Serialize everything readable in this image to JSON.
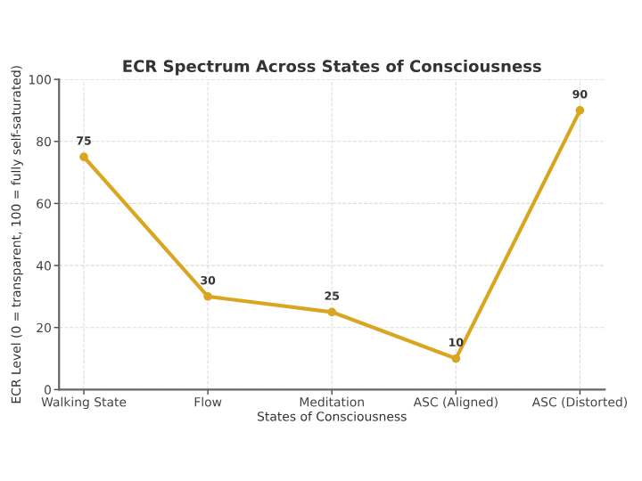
{
  "chart_data": {
    "type": "line",
    "title": "ECR Spectrum Across States of Consciousness",
    "xlabel": "States of Consciousness",
    "ylabel": "ECR Level (0 = transparent, 100 = fully self-saturated)",
    "categories": [
      "Walking State",
      "Flow",
      "Meditation",
      "ASC (Aligned)",
      "ASC (Distorted)"
    ],
    "series": [
      {
        "color": "#daa520",
        "values": [
          75,
          30,
          25,
          10,
          90
        ]
      }
    ],
    "ylim": [
      0,
      100
    ],
    "yticks": [
      0,
      20,
      40,
      60,
      80,
      100
    ],
    "grid": true,
    "marker": "circle",
    "line_style": "solid",
    "data_labels": true
  }
}
